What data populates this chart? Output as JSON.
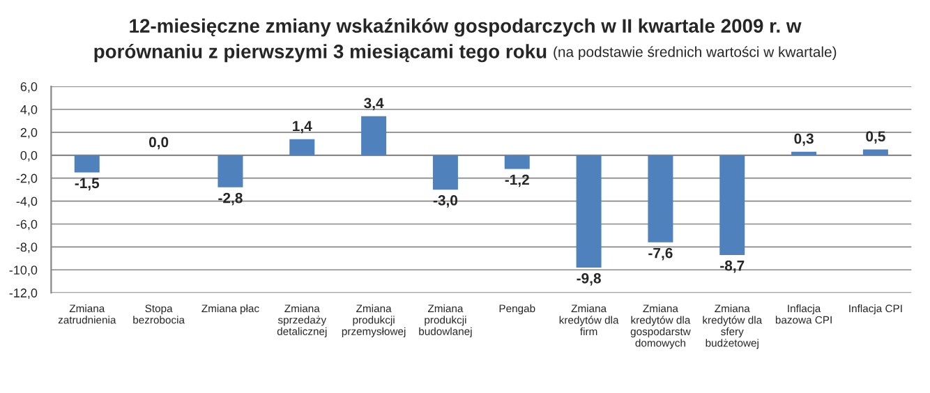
{
  "chart_data": {
    "type": "bar",
    "title": "12-miesięczne zmiany wskaźników gospodarczych w II kwartale 2009 r. w porównaniu z pierwszymi 3 miesiącami tego roku",
    "subtitle": "(na podstawie średnich wartości w kwartale)",
    "categories": [
      "Zmiana zatrudnienia",
      "Stopa bezrobocia",
      "Zmiana płac",
      "Zmiana sprzedaży detalicznej",
      "Zmiana produkcji przemysłowej",
      "Zmiana produkcji budowlanej",
      "Pengab",
      "Zmiana kredytów dla firm",
      "Zmiana kredytów dla gospodarstw domowych",
      "Zmiana kredytów dla sfery budżetowej",
      "Inflacja bazowa CPI",
      "Inflacja CPI"
    ],
    "values": [
      -1.5,
      0.0,
      -2.8,
      1.4,
      3.4,
      -3.0,
      -1.2,
      -9.8,
      -7.6,
      -8.7,
      0.3,
      0.5
    ],
    "value_labels": [
      "-1,5",
      "0,0",
      "-2,8",
      "1,4",
      "3,4",
      "-3,0",
      "-1,2",
      "-9,8",
      "-7,6",
      "-8,7",
      "0,3",
      "0,5"
    ],
    "color": "#4f81bd",
    "ylim": [
      -12,
      6
    ],
    "yticks": [
      {
        "value": -12,
        "label": "-12,0"
      },
      {
        "value": -10,
        "label": "-10,0"
      },
      {
        "value": -8,
        "label": "-8,0"
      },
      {
        "value": -6,
        "label": "-6,0"
      },
      {
        "value": -4,
        "label": "-4,0"
      },
      {
        "value": -2,
        "label": "-2,0"
      },
      {
        "value": 0,
        "label": "0,0"
      },
      {
        "value": 2,
        "label": "2,0"
      },
      {
        "value": 4,
        "label": "4,0"
      },
      {
        "value": 6,
        "label": "6,0"
      }
    ],
    "grid": "y"
  }
}
